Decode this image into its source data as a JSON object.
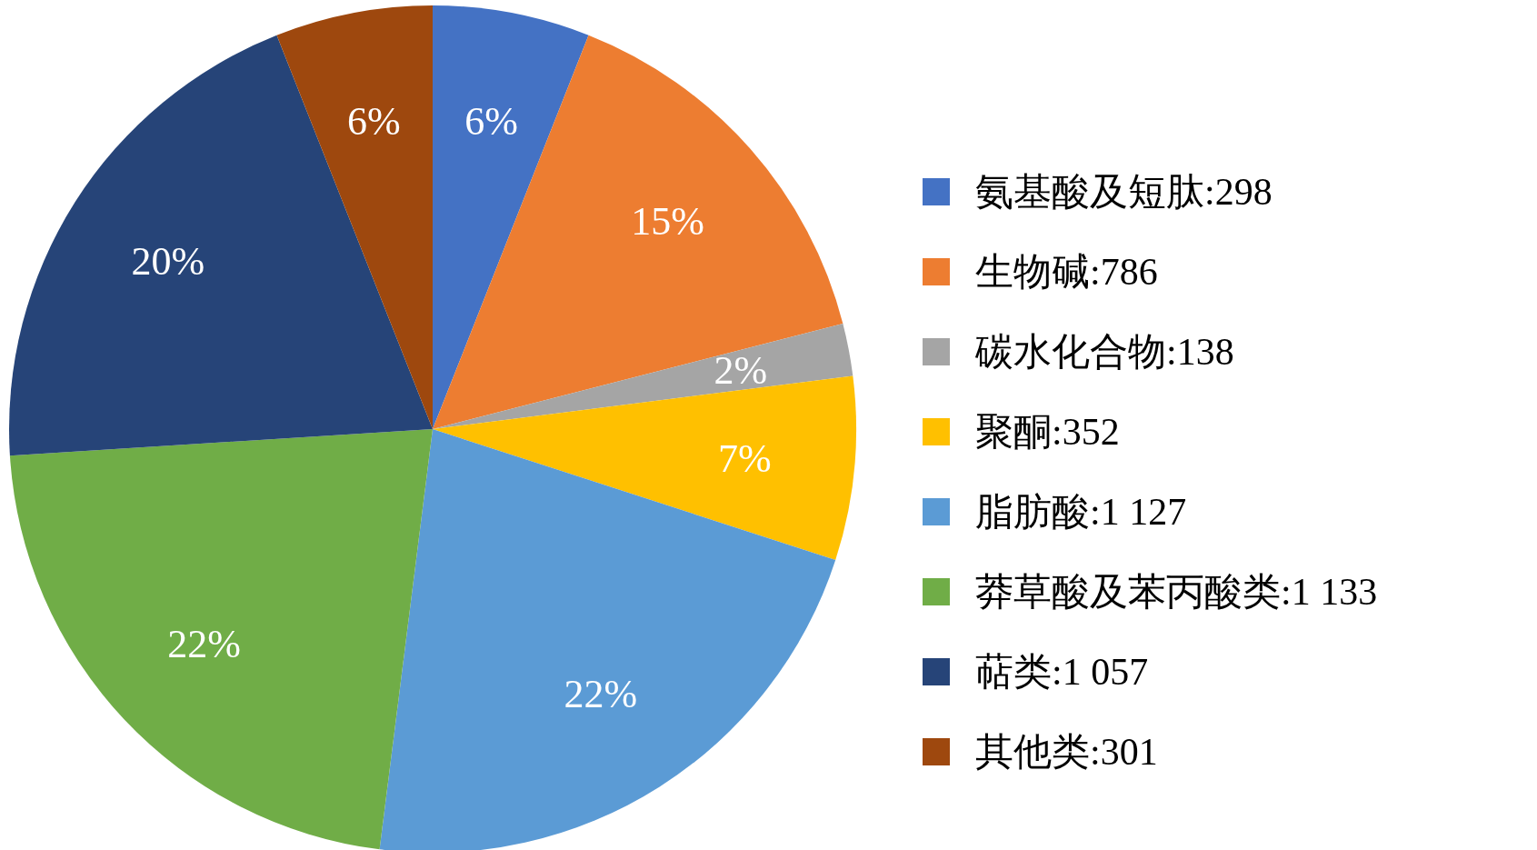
{
  "chart_data": {
    "type": "pie",
    "categories": [
      "氨基酸及短肽:298",
      "生物碱:786",
      "碳水化合物:138",
      "聚酮:352",
      "脂肪酸:1 127",
      "莽草酸及苯丙酸类:1 133",
      "萜类:1 057",
      "其他类:301"
    ],
    "values": [
      6,
      15,
      2,
      7,
      22,
      22,
      20,
      6
    ],
    "colors": [
      "#4472c4",
      "#ed7d31",
      "#a5a5a5",
      "#ffc000",
      "#5b9bd5",
      "#70ad47",
      "#264478",
      "#9e480e"
    ],
    "value_labels": [
      "6%",
      "15%",
      "2%",
      "7%",
      "22%",
      "22%",
      "20%",
      "6%"
    ],
    "legend": "right"
  }
}
